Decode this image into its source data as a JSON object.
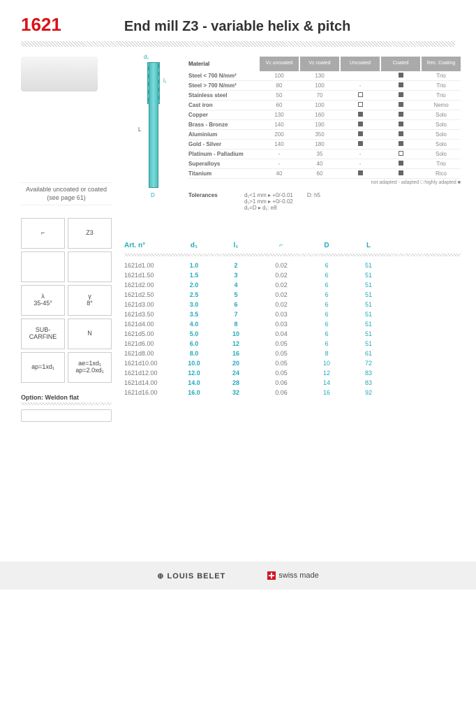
{
  "code": "1621",
  "title": "End mill Z3 - variable helix & pitch",
  "available": "Available uncoated or coated (see page 61)",
  "badges": [
    "⌐",
    "Z3",
    "",
    "",
    "λ\n35-45°",
    "γ\n8°",
    "SUB-\nCARFINE",
    "N",
    "ap=1xd₁",
    "ae=1xd₁\nap=2.0xd₁"
  ],
  "option": "Option: Weldon flat",
  "diagram": {
    "d1": "d₁",
    "l1": "l₁",
    "L": "L",
    "D": "D"
  },
  "mat": {
    "label": "Material",
    "cols": [
      "Vc uncoated",
      "Vc coated",
      "Uncoated",
      "Coated",
      "Rec. Coating"
    ],
    "rows": [
      {
        "n": "Steel < 700 N/mm²",
        "v": [
          "100",
          "130",
          "",
          "■",
          "Trio"
        ]
      },
      {
        "n": "Steel > 700 N/mm²",
        "v": [
          "80",
          "100",
          "-",
          "■",
          "Trio"
        ]
      },
      {
        "n": "Stainless steel",
        "v": [
          "50",
          "70",
          "□",
          "■",
          "Trio"
        ]
      },
      {
        "n": "Cast iron",
        "v": [
          "60",
          "100",
          "□",
          "■",
          "Nemo"
        ]
      },
      {
        "n": "Copper",
        "v": [
          "130",
          "160",
          "■",
          "■",
          "Solo"
        ]
      },
      {
        "n": "Brass - Bronze",
        "v": [
          "140",
          "190",
          "■",
          "■",
          "Solo"
        ]
      },
      {
        "n": "Aluminium",
        "v": [
          "200",
          "350",
          "■",
          "■",
          "Solo"
        ]
      },
      {
        "n": "Gold - Silver",
        "v": [
          "140",
          "180",
          "■",
          "■",
          "Solo"
        ]
      },
      {
        "n": "Platinum - Palladium",
        "v": [
          "-",
          "35",
          "-",
          "□",
          "Solo"
        ]
      },
      {
        "n": "Superalloys",
        "v": [
          "-",
          "40",
          "-",
          "■",
          "Trio"
        ]
      },
      {
        "n": "Titanium",
        "v": [
          "40",
          "60",
          "■",
          "■",
          "Rico"
        ]
      }
    ],
    "legend": "not adapted -   adapted □   highly adapted ■"
  },
  "tol": {
    "label": "Tolerances",
    "t1": "d₁<1 mm ▸ +0/-0.01",
    "t2": "d₁>1 mm ▸ +0/-0.02",
    "t3": "d₁=D   ▸ d₁: e8",
    "t4": "D: h5"
  },
  "spec": {
    "cols": [
      "Art. n°",
      "d₁",
      "l₁",
      "⌐",
      "D",
      "L"
    ],
    "rows": [
      [
        "1621d1.00",
        "1.0",
        "2",
        "0.02",
        "6",
        "51"
      ],
      [
        "1621d1.50",
        "1.5",
        "3",
        "0.02",
        "6",
        "51"
      ],
      [
        "1621d2.00",
        "2.0",
        "4",
        "0.02",
        "6",
        "51"
      ],
      [
        "1621d2.50",
        "2.5",
        "5",
        "0.02",
        "6",
        "51"
      ],
      [
        "1621d3.00",
        "3.0",
        "6",
        "0.02",
        "6",
        "51"
      ],
      [
        "1621d3.50",
        "3.5",
        "7",
        "0.03",
        "6",
        "51"
      ],
      [
        "1621d4.00",
        "4.0",
        "8",
        "0.03",
        "6",
        "51"
      ],
      [
        "1621d5.00",
        "5.0",
        "10",
        "0.04",
        "6",
        "51"
      ],
      [
        "1621d6.00",
        "6.0",
        "12",
        "0.05",
        "6",
        "51"
      ],
      [
        "1621d8.00",
        "8.0",
        "16",
        "0.05",
        "8",
        "61"
      ],
      [
        "1621d10.00",
        "10.0",
        "20",
        "0.05",
        "10",
        "72"
      ],
      [
        "1621d12.00",
        "12.0",
        "24",
        "0.05",
        "12",
        "83"
      ],
      [
        "1621d14.00",
        "14.0",
        "28",
        "0.06",
        "14",
        "83"
      ],
      [
        "1621d16.00",
        "16.0",
        "32",
        "0.06",
        "16",
        "92"
      ]
    ]
  },
  "footer": {
    "logo": "⊕ LOUIS BELET",
    "made": "swiss made"
  }
}
